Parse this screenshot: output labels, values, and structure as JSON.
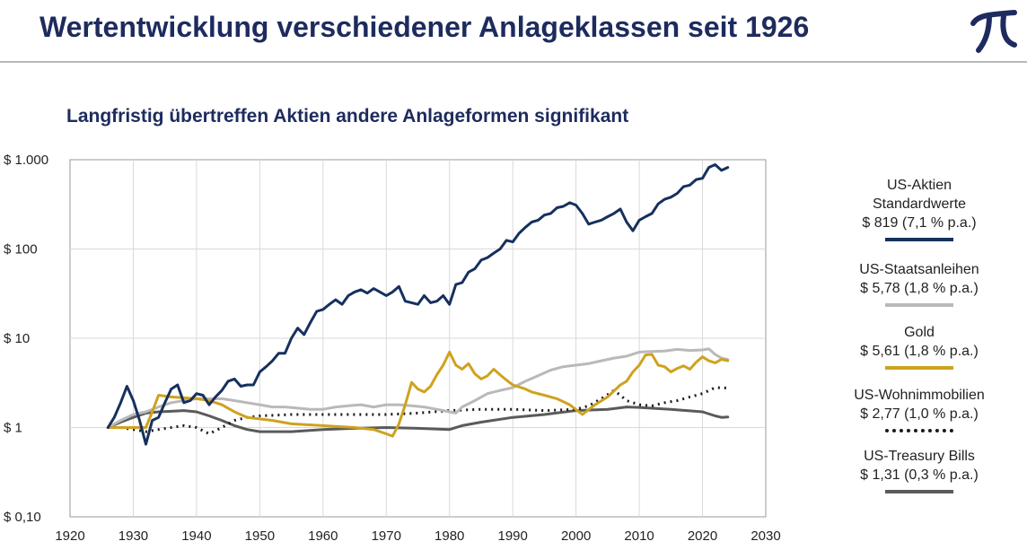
{
  "header": {
    "title": "Wertentwicklung verschiedener Anlageklassen seit 1926",
    "logo_icon": "pi-logo-icon"
  },
  "chart_data": {
    "type": "line",
    "title": "Langfristig übertreffen Aktien andere Anlageformen signifikant",
    "y_scale": "log",
    "ylim": [
      0.1,
      1000
    ],
    "xlim": [
      1920,
      2030
    ],
    "y_ticks": [
      {
        "value": 1000,
        "label": "$ 1.000"
      },
      {
        "value": 100,
        "label": "$ 100"
      },
      {
        "value": 10,
        "label": "$ 10"
      },
      {
        "value": 1,
        "label": "$ 1"
      },
      {
        "value": 0.1,
        "label": "$ 0,10"
      }
    ],
    "x_ticks": [
      {
        "value": 1920,
        "label": "1920"
      },
      {
        "value": 1930,
        "label": "1930"
      },
      {
        "value": 1940,
        "label": "1940"
      },
      {
        "value": 1950,
        "label": "1950"
      },
      {
        "value": 1960,
        "label": "1960"
      },
      {
        "value": 1970,
        "label": "1970"
      },
      {
        "value": 1980,
        "label": "1980"
      },
      {
        "value": 1990,
        "label": "1990"
      },
      {
        "value": 2000,
        "label": "2000"
      },
      {
        "value": 2010,
        "label": "2010"
      },
      {
        "value": 2020,
        "label": "2020"
      },
      {
        "value": 2030,
        "label": "2030"
      }
    ],
    "grid": true,
    "legend_position": "right",
    "series": [
      {
        "name": "US-Aktien\nStandardwerte\n$ 819 (7,1 % p.a.)",
        "color": "#16305e",
        "dash": "solid",
        "points": [
          [
            1926,
            1.0
          ],
          [
            1927,
            1.3
          ],
          [
            1928,
            1.9
          ],
          [
            1929,
            2.9
          ],
          [
            1930,
            2.0
          ],
          [
            1931,
            1.2
          ],
          [
            1932,
            0.65
          ],
          [
            1933,
            1.2
          ],
          [
            1934,
            1.3
          ],
          [
            1935,
            1.9
          ],
          [
            1936,
            2.7
          ],
          [
            1937,
            3.0
          ],
          [
            1938,
            1.9
          ],
          [
            1939,
            2.0
          ],
          [
            1940,
            2.4
          ],
          [
            1941,
            2.3
          ],
          [
            1942,
            1.8
          ],
          [
            1943,
            2.2
          ],
          [
            1944,
            2.6
          ],
          [
            1945,
            3.3
          ],
          [
            1946,
            3.5
          ],
          [
            1947,
            2.9
          ],
          [
            1948,
            3.0
          ],
          [
            1949,
            3.0
          ],
          [
            1950,
            4.2
          ],
          [
            1951,
            4.8
          ],
          [
            1952,
            5.6
          ],
          [
            1953,
            6.8
          ],
          [
            1954,
            6.8
          ],
          [
            1955,
            10.0
          ],
          [
            1956,
            13.0
          ],
          [
            1957,
            11.0
          ],
          [
            1958,
            15.0
          ],
          [
            1959,
            20.0
          ],
          [
            1960,
            21.0
          ],
          [
            1961,
            24.0
          ],
          [
            1962,
            27.0
          ],
          [
            1963,
            24.0
          ],
          [
            1964,
            30.0
          ],
          [
            1965,
            33.0
          ],
          [
            1966,
            35.0
          ],
          [
            1967,
            32.0
          ],
          [
            1968,
            36.0
          ],
          [
            1969,
            33.0
          ],
          [
            1970,
            30.0
          ],
          [
            1971,
            33.0
          ],
          [
            1972,
            38.0
          ],
          [
            1973,
            26.0
          ],
          [
            1974,
            25.0
          ],
          [
            1975,
            24.0
          ],
          [
            1976,
            30.0
          ],
          [
            1977,
            25.0
          ],
          [
            1978,
            26.0
          ],
          [
            1979,
            30.0
          ],
          [
            1980,
            24.0
          ],
          [
            1981,
            40.0
          ],
          [
            1982,
            42.0
          ],
          [
            1983,
            55.0
          ],
          [
            1984,
            60.0
          ],
          [
            1985,
            75.0
          ],
          [
            1986,
            80.0
          ],
          [
            1987,
            90.0
          ],
          [
            1988,
            100.0
          ],
          [
            1989,
            125.0
          ],
          [
            1990,
            120.0
          ],
          [
            1991,
            150.0
          ],
          [
            1992,
            175.0
          ],
          [
            1993,
            200.0
          ],
          [
            1994,
            210.0
          ],
          [
            1995,
            240.0
          ],
          [
            1996,
            250.0
          ],
          [
            1997,
            290.0
          ],
          [
            1998,
            300.0
          ],
          [
            1999,
            330.0
          ],
          [
            2000,
            310.0
          ],
          [
            2001,
            250.0
          ],
          [
            2002,
            190.0
          ],
          [
            2003,
            200.0
          ],
          [
            2004,
            210.0
          ],
          [
            2005,
            230.0
          ],
          [
            2006,
            250.0
          ],
          [
            2007,
            280.0
          ],
          [
            2008,
            200.0
          ],
          [
            2009,
            160.0
          ],
          [
            2010,
            210.0
          ],
          [
            2011,
            230.0
          ],
          [
            2012,
            250.0
          ],
          [
            2013,
            320.0
          ],
          [
            2014,
            360.0
          ],
          [
            2015,
            380.0
          ],
          [
            2016,
            420.0
          ],
          [
            2017,
            500.0
          ],
          [
            2018,
            520.0
          ],
          [
            2019,
            600.0
          ],
          [
            2020,
            620.0
          ],
          [
            2021,
            820.0
          ],
          [
            2022,
            880.0
          ],
          [
            2023,
            760.0
          ],
          [
            2024,
            819.0
          ]
        ]
      },
      {
        "name": "US-Staatsanleihen\n$ 5,78 (1,8 % p.a.)",
        "color": "#b9b9b9",
        "dash": "solid",
        "points": [
          [
            1926,
            1.0
          ],
          [
            1928,
            1.2
          ],
          [
            1930,
            1.4
          ],
          [
            1932,
            1.5
          ],
          [
            1934,
            1.7
          ],
          [
            1936,
            1.9
          ],
          [
            1938,
            2.0
          ],
          [
            1940,
            2.1
          ],
          [
            1942,
            2.1
          ],
          [
            1944,
            2.1
          ],
          [
            1946,
            2.0
          ],
          [
            1948,
            1.9
          ],
          [
            1950,
            1.8
          ],
          [
            1952,
            1.7
          ],
          [
            1954,
            1.7
          ],
          [
            1956,
            1.65
          ],
          [
            1958,
            1.6
          ],
          [
            1960,
            1.6
          ],
          [
            1962,
            1.7
          ],
          [
            1964,
            1.75
          ],
          [
            1966,
            1.8
          ],
          [
            1968,
            1.7
          ],
          [
            1970,
            1.8
          ],
          [
            1972,
            1.8
          ],
          [
            1974,
            1.75
          ],
          [
            1976,
            1.7
          ],
          [
            1978,
            1.6
          ],
          [
            1980,
            1.5
          ],
          [
            1981,
            1.45
          ],
          [
            1982,
            1.7
          ],
          [
            1984,
            2.0
          ],
          [
            1986,
            2.4
          ],
          [
            1988,
            2.6
          ],
          [
            1990,
            2.8
          ],
          [
            1992,
            3.3
          ],
          [
            1994,
            3.8
          ],
          [
            1996,
            4.4
          ],
          [
            1998,
            4.8
          ],
          [
            2000,
            5.0
          ],
          [
            2002,
            5.2
          ],
          [
            2004,
            5.6
          ],
          [
            2006,
            6.0
          ],
          [
            2008,
            6.3
          ],
          [
            2010,
            7.0
          ],
          [
            2012,
            7.1
          ],
          [
            2014,
            7.2
          ],
          [
            2016,
            7.5
          ],
          [
            2018,
            7.3
          ],
          [
            2020,
            7.4
          ],
          [
            2021,
            7.6
          ],
          [
            2022,
            6.6
          ],
          [
            2023,
            6.0
          ],
          [
            2024,
            5.78
          ]
        ]
      },
      {
        "name": "Gold\n$ 5,61 (1,8 % p.a.)",
        "color": "#cfa21e",
        "dash": "solid",
        "points": [
          [
            1926,
            1.0
          ],
          [
            1932,
            1.0
          ],
          [
            1933,
            1.5
          ],
          [
            1934,
            2.3
          ],
          [
            1936,
            2.2
          ],
          [
            1940,
            2.1
          ],
          [
            1942,
            2.0
          ],
          [
            1944,
            1.8
          ],
          [
            1946,
            1.5
          ],
          [
            1948,
            1.3
          ],
          [
            1950,
            1.25
          ],
          [
            1952,
            1.2
          ],
          [
            1955,
            1.1
          ],
          [
            1960,
            1.05
          ],
          [
            1965,
            1.0
          ],
          [
            1968,
            0.95
          ],
          [
            1970,
            0.85
          ],
          [
            1971,
            0.8
          ],
          [
            1972,
            1.1
          ],
          [
            1973,
            1.8
          ],
          [
            1974,
            3.2
          ],
          [
            1975,
            2.7
          ],
          [
            1976,
            2.5
          ],
          [
            1977,
            2.9
          ],
          [
            1978,
            3.9
          ],
          [
            1979,
            5.0
          ],
          [
            1980,
            7.0
          ],
          [
            1981,
            5.0
          ],
          [
            1982,
            4.5
          ],
          [
            1983,
            5.2
          ],
          [
            1984,
            4.0
          ],
          [
            1985,
            3.5
          ],
          [
            1986,
            3.8
          ],
          [
            1987,
            4.5
          ],
          [
            1988,
            3.9
          ],
          [
            1989,
            3.4
          ],
          [
            1990,
            3.0
          ],
          [
            1992,
            2.7
          ],
          [
            1993,
            2.5
          ],
          [
            1995,
            2.3
          ],
          [
            1997,
            2.1
          ],
          [
            1999,
            1.8
          ],
          [
            2001,
            1.4
          ],
          [
            2003,
            1.8
          ],
          [
            2005,
            2.2
          ],
          [
            2007,
            3.0
          ],
          [
            2008,
            3.3
          ],
          [
            2009,
            4.2
          ],
          [
            2010,
            5.0
          ],
          [
            2011,
            6.5
          ],
          [
            2012,
            6.6
          ],
          [
            2013,
            5.0
          ],
          [
            2014,
            4.8
          ],
          [
            2015,
            4.2
          ],
          [
            2016,
            4.6
          ],
          [
            2017,
            4.9
          ],
          [
            2018,
            4.5
          ],
          [
            2019,
            5.4
          ],
          [
            2020,
            6.2
          ],
          [
            2021,
            5.6
          ],
          [
            2022,
            5.3
          ],
          [
            2023,
            5.8
          ],
          [
            2024,
            5.61
          ]
        ]
      },
      {
        "name": "US-Wohnimmobilien\n$ 2,77 (1,0 % p.a.)",
        "color": "#1a1a1a",
        "dash": "dotted",
        "points": [
          [
            1926,
            1.0
          ],
          [
            1928,
            1.0
          ],
          [
            1930,
            0.95
          ],
          [
            1932,
            0.9
          ],
          [
            1934,
            0.95
          ],
          [
            1936,
            1.0
          ],
          [
            1938,
            1.05
          ],
          [
            1940,
            1.0
          ],
          [
            1942,
            0.85
          ],
          [
            1944,
            1.0
          ],
          [
            1946,
            1.2
          ],
          [
            1948,
            1.3
          ],
          [
            1950,
            1.35
          ],
          [
            1955,
            1.4
          ],
          [
            1960,
            1.4
          ],
          [
            1965,
            1.4
          ],
          [
            1970,
            1.4
          ],
          [
            1975,
            1.45
          ],
          [
            1980,
            1.55
          ],
          [
            1985,
            1.6
          ],
          [
            1990,
            1.6
          ],
          [
            1995,
            1.55
          ],
          [
            2000,
            1.6
          ],
          [
            2002,
            1.75
          ],
          [
            2004,
            2.1
          ],
          [
            2006,
            2.6
          ],
          [
            2007,
            2.3
          ],
          [
            2008,
            2.0
          ],
          [
            2010,
            1.8
          ],
          [
            2012,
            1.75
          ],
          [
            2014,
            1.9
          ],
          [
            2016,
            2.0
          ],
          [
            2018,
            2.2
          ],
          [
            2020,
            2.4
          ],
          [
            2022,
            2.8
          ],
          [
            2024,
            2.77
          ]
        ]
      },
      {
        "name": "US-Treasury Bills\n$ 1,31 (0,3 % p.a.)",
        "color": "#5a5a5a",
        "dash": "solid",
        "points": [
          [
            1926,
            1.0
          ],
          [
            1928,
            1.15
          ],
          [
            1930,
            1.3
          ],
          [
            1932,
            1.45
          ],
          [
            1934,
            1.5
          ],
          [
            1936,
            1.52
          ],
          [
            1938,
            1.55
          ],
          [
            1940,
            1.5
          ],
          [
            1942,
            1.35
          ],
          [
            1944,
            1.2
          ],
          [
            1946,
            1.05
          ],
          [
            1948,
            0.95
          ],
          [
            1950,
            0.9
          ],
          [
            1955,
            0.9
          ],
          [
            1960,
            0.95
          ],
          [
            1965,
            0.98
          ],
          [
            1970,
            1.0
          ],
          [
            1975,
            0.98
          ],
          [
            1980,
            0.95
          ],
          [
            1982,
            1.05
          ],
          [
            1985,
            1.15
          ],
          [
            1990,
            1.3
          ],
          [
            1995,
            1.4
          ],
          [
            2000,
            1.55
          ],
          [
            2005,
            1.6
          ],
          [
            2008,
            1.7
          ],
          [
            2010,
            1.68
          ],
          [
            2015,
            1.6
          ],
          [
            2020,
            1.5
          ],
          [
            2022,
            1.35
          ],
          [
            2023,
            1.3
          ],
          [
            2024,
            1.31
          ]
        ]
      }
    ]
  }
}
